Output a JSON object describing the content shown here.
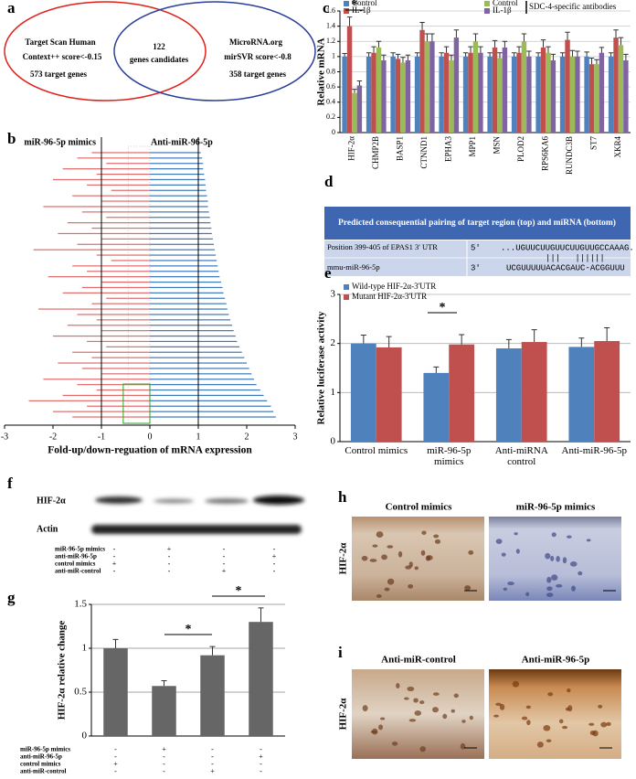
{
  "panel_labels": [
    "a",
    "b",
    "c",
    "d",
    "e",
    "f",
    "g",
    "h",
    "i"
  ],
  "venn": {
    "left": [
      "Target Scan Human",
      "Context++ score<-0.15",
      "573 target genes"
    ],
    "center": [
      "122",
      "genes candidates"
    ],
    "right": [
      "MicroRNA.org",
      "mirSVR score<-0.8",
      "358 target genes"
    ]
  },
  "chart_data": [
    {
      "type": "hbar",
      "xlabel": "Fold-up/down-reguation of mRNA expression",
      "series": [
        {
          "name": "miR-96-5p mimics",
          "color": "#e06a6a",
          "values": [
            -1.2,
            -1.5,
            -0.9,
            -1.8,
            -1.1,
            -2.0,
            -1.3,
            -0.8,
            -1.6,
            -1.0,
            -2.2,
            -1.4,
            -0.9,
            -1.7,
            -1.2,
            -1.9,
            -1.0,
            -1.5,
            -2.4,
            -1.1,
            -0.8,
            -1.6,
            -1.3,
            -2.1,
            -1.0,
            -1.4,
            -1.8,
            -0.9,
            -1.2,
            -2.3,
            -1.5,
            -1.1,
            -1.7,
            -1.0,
            -2.0,
            -1.3,
            -0.9,
            -1.6,
            -1.2,
            -1.9,
            -1.4,
            -1.0,
            -2.2,
            -1.5,
            -1.1,
            -1.8,
            -2.5,
            -1.3,
            -2.0,
            -1.6
          ]
        },
        {
          "name": "Anti-miR-96-5p",
          "color": "#3b78b8",
          "values": [
            1.05,
            1.08,
            1.1,
            1.1,
            1.12,
            1.14,
            1.15,
            1.16,
            1.18,
            1.2,
            1.2,
            1.22,
            1.24,
            1.25,
            1.27,
            1.28,
            1.3,
            1.32,
            1.34,
            1.36,
            1.38,
            1.4,
            1.42,
            1.44,
            1.47,
            1.5,
            1.52,
            1.55,
            1.58,
            1.6,
            1.63,
            1.66,
            1.7,
            1.73,
            1.77,
            1.8,
            1.85,
            1.9,
            1.95,
            2.0,
            2.05,
            2.1,
            2.15,
            2.2,
            2.28,
            2.35,
            2.42,
            2.5,
            2.55,
            2.6
          ]
        }
      ],
      "xlim": [
        -3,
        3
      ],
      "xticks": [
        -3,
        -2,
        -1,
        0,
        1,
        2,
        3
      ],
      "reference_lines": [
        -1,
        1
      ]
    },
    {
      "type": "bar",
      "ylabel": "Relative mRNA",
      "categories": [
        "HIF-2α",
        "CHMP2B",
        "BASP1",
        "CTNND1",
        "EPHA3",
        "MPP1",
        "MSN",
        "PLOD2",
        "RPS6KA6",
        "RUNDC3B",
        "ST7",
        "XKR4"
      ],
      "series": [
        {
          "name": "Control",
          "color": "#4f81bd",
          "values": [
            1,
            1,
            1,
            1,
            1,
            1,
            1,
            1,
            1,
            1,
            1,
            1
          ],
          "errors": [
            0.04,
            0.05,
            0.05,
            0.05,
            0.05,
            0.05,
            0.05,
            0.05,
            0.05,
            0.05,
            0.06,
            0.05
          ]
        },
        {
          "name": "IL-1β",
          "color": "#c0504d",
          "values": [
            1.4,
            1.05,
            0.97,
            1.35,
            1.05,
            1.05,
            1.12,
            1.05,
            1.12,
            1.22,
            0.9,
            1.25
          ],
          "errors": [
            0.12,
            0.08,
            0.06,
            0.1,
            0.08,
            0.08,
            0.09,
            0.08,
            0.1,
            0.1,
            0.08,
            0.1
          ]
        },
        {
          "name": "Control",
          "color": "#9bbb59",
          "values": [
            0.52,
            1.12,
            0.92,
            1.2,
            0.95,
            1.2,
            0.98,
            1.2,
            1.05,
            1.0,
            0.9,
            1.15
          ],
          "errors": [
            0.05,
            0.08,
            0.07,
            0.1,
            0.07,
            0.1,
            0.07,
            0.1,
            0.08,
            0.08,
            0.06,
            0.1
          ]
        },
        {
          "name": "IL-1β",
          "color": "#8064a2",
          "values": [
            0.62,
            0.95,
            0.95,
            1.2,
            1.25,
            1.05,
            1.12,
            1.0,
            0.95,
            1.0,
            1.05,
            0.95
          ],
          "errors": [
            0.06,
            0.07,
            0.07,
            0.1,
            0.1,
            0.08,
            0.08,
            0.07,
            0.08,
            0.07,
            0.07,
            0.08
          ]
        }
      ],
      "legend_note": "SDC-4-specific antibodies",
      "ylim": [
        0,
        1.6
      ],
      "yticks": [
        0,
        0.2,
        0.4,
        0.6,
        0.8,
        1,
        1.2,
        1.4,
        1.6
      ],
      "grid": true,
      "xtick_rotation": -90,
      "annotations": [
        "*"
      ]
    },
    {
      "type": "bar",
      "ylabel": "Relative luciferase activity",
      "categories": [
        "Control mimics",
        "miR-96-5p mimics",
        "Anti-miRNA control",
        "Anti-miR-96-5p"
      ],
      "series": [
        {
          "name": "Wild-type HIF-2α-3'UTR",
          "color": "#4f81bd",
          "values": [
            2.0,
            1.4,
            1.9,
            1.93
          ],
          "errors": [
            0.17,
            0.12,
            0.18,
            0.18
          ]
        },
        {
          "name": "Mutant HIF-2α-3'UTR",
          "color": "#c0504d",
          "values": [
            1.92,
            1.98,
            2.03,
            2.05
          ],
          "errors": [
            0.22,
            0.2,
            0.25,
            0.27
          ]
        }
      ],
      "ylim": [
        0,
        3
      ],
      "yticks": [
        0,
        1,
        2,
        3
      ],
      "grid": true,
      "legend": "top-left",
      "annotations": [
        "*"
      ]
    },
    {
      "type": "bar",
      "ylabel": "HIF-2α relative change",
      "values": [
        1,
        0.57,
        0.92,
        1.3
      ],
      "errors": [
        0.1,
        0.06,
        0.1,
        0.16
      ],
      "color": "#666666",
      "ylim": [
        0,
        1.5
      ],
      "yticks": [
        0,
        0.5,
        1,
        1.5
      ],
      "grid": true,
      "annotations": [
        "*",
        "*"
      ]
    }
  ],
  "table": {
    "header": "Predicted consequential pairing of target region (top) and miRNA (bottom)",
    "target": {
      "label": "Position 399-405 of EPAS1 3' UTR",
      "end": "5'",
      "sequence": "...UGUUCUUGUUCUUGUUGCCAAAG..."
    },
    "pairing": "|||   ||||||",
    "mirna": {
      "label": "mmu-miR-96-5p",
      "end": "3'",
      "sequence": "UCGUUUUUACACGAUC-ACGGUUU"
    }
  },
  "blot": {
    "rows": [
      "HIF-2α",
      "Actin"
    ]
  },
  "conditions": [
    {
      "name": "miR-96-5p mimics",
      "signs": [
        "-",
        "+",
        "-",
        "-"
      ]
    },
    {
      "name": "anti-miR-96-5p",
      "signs": [
        "-",
        "-",
        "-",
        "+"
      ]
    },
    {
      "name": "control mimics",
      "signs": [
        "+",
        "-",
        "-",
        "-"
      ]
    },
    {
      "name": "anti-miR-control",
      "signs": [
        "-",
        "-",
        "+",
        "-"
      ]
    }
  ],
  "micrographs": [
    {
      "ylabel": "HIF-2α",
      "titles": [
        "Control mimics",
        "miR-96-5p mimics"
      ]
    },
    {
      "ylabel": "HIF-2α",
      "titles": [
        "Anti-miR-control",
        "Anti-miR-96-5p"
      ]
    }
  ]
}
